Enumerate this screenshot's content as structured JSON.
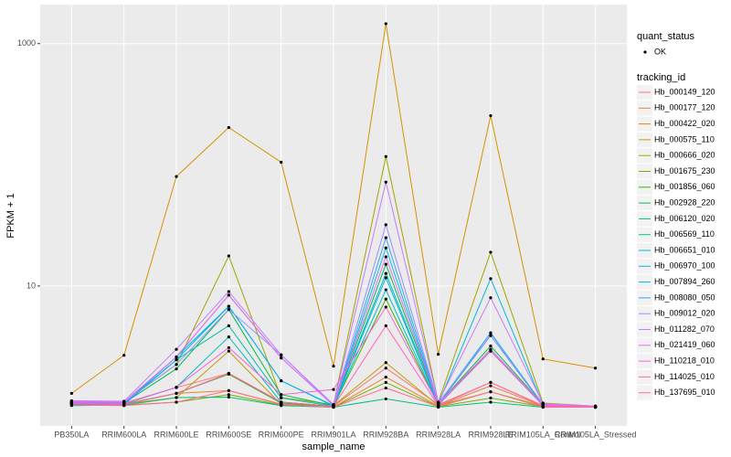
{
  "chart_data": {
    "type": "line",
    "x_label": "sample_name",
    "y_label": "FPKM + 1",
    "ylog": true,
    "grid": true,
    "categories": [
      "PB350LA",
      "RRIM600LA",
      "RRIM600LE",
      "RRIM600SE",
      "RRIM600PE",
      "RRIM901LA",
      "RRIM928BA",
      "RRIM928LA",
      "RRIM928LE",
      "RRIM105LA_Control",
      "RRIM105LA_Stressed"
    ],
    "ylim": [
      0.7,
      2100
    ],
    "yticks": [
      10,
      1000
    ],
    "point_color": "#000000",
    "shape_legend": {
      "title": "quant_status",
      "items": [
        "OK"
      ]
    },
    "legend_title": "tracking_id",
    "series": [
      {
        "name": "Hb_000149_120",
        "color": "#F8766D",
        "values": [
          1.1,
          1.08,
          1.45,
          1.9,
          1.1,
          1.02,
          2.1,
          1.05,
          1.6,
          1.03,
          1.0
        ]
      },
      {
        "name": "Hb_000177_120",
        "color": "#EA8331",
        "values": [
          1.05,
          1.05,
          1.3,
          1.37,
          1.06,
          1.0,
          1.77,
          1.02,
          1.5,
          1.02,
          1.0
        ]
      },
      {
        "name": "Hb_000422_020",
        "color": "#D89000",
        "values": [
          1.3,
          2.68,
          80,
          203,
          105,
          2.18,
          1460,
          2.73,
          254,
          2.5,
          2.1
        ]
      },
      {
        "name": "Hb_000575_110",
        "color": "#C09B00",
        "values": [
          1.08,
          1.06,
          1.2,
          2.9,
          1.05,
          1.03,
          2.33,
          1.03,
          1.34,
          1.02,
          1.01
        ]
      },
      {
        "name": "Hb_000666_020",
        "color": "#A3A500",
        "values": [
          1.12,
          1.1,
          2.25,
          17.7,
          1.2,
          1.05,
          117,
          1.1,
          19,
          1.08,
          1.02
        ]
      },
      {
        "name": "Hb_001675_230",
        "color": "#7CAE00",
        "values": [
          1.06,
          1.04,
          1.1,
          1.27,
          1.04,
          1.0,
          1.6,
          1.01,
          1.19,
          1.01,
          1.0
        ]
      },
      {
        "name": "Hb_001856_060",
        "color": "#39B600",
        "values": [
          1.05,
          1.06,
          1.3,
          1.87,
          1.08,
          1.02,
          7.8,
          1.04,
          3.0,
          1.03,
          1.0
        ]
      },
      {
        "name": "Hb_002928_220",
        "color": "#00BB4E",
        "values": [
          1.1,
          1.08,
          2.07,
          6.4,
          1.27,
          1.03,
          15.1,
          1.06,
          3.2,
          1.05,
          1.02
        ]
      },
      {
        "name": "Hb_006120_020",
        "color": "#00BF7D",
        "values": [
          1.03,
          1.04,
          1.2,
          1.21,
          1.03,
          1.0,
          1.17,
          1.0,
          1.1,
          1.0,
          1.0
        ]
      },
      {
        "name": "Hb_006569_110",
        "color": "#00C1A3",
        "values": [
          1.08,
          1.07,
          2.46,
          4.7,
          1.19,
          1.02,
          12.7,
          1.05,
          3.9,
          1.04,
          1.01
        ]
      },
      {
        "name": "Hb_006651_010",
        "color": "#00BFC4",
        "values": [
          1.07,
          1.06,
          1.46,
          3.8,
          1.1,
          1.02,
          9.3,
          1.04,
          2.9,
          1.03,
          1.0
        ]
      },
      {
        "name": "Hb_006970_100",
        "color": "#00BAE0",
        "values": [
          1.09,
          1.07,
          2.6,
          6.8,
          1.65,
          1.03,
          20.6,
          1.06,
          11.5,
          1.05,
          1.01
        ]
      },
      {
        "name": "Hb_007894_260",
        "color": "#00B0F6",
        "values": [
          1.06,
          1.05,
          2.46,
          6.8,
          1.65,
          1.02,
          11.7,
          1.05,
          4.1,
          1.04,
          1.0
        ]
      },
      {
        "name": "Hb_008080_050",
        "color": "#35A2FF",
        "values": [
          1.1,
          1.08,
          2.6,
          8.4,
          2.55,
          1.03,
          25,
          1.07,
          4.1,
          1.05,
          1.01
        ]
      },
      {
        "name": "Hb_009012_020",
        "color": "#9590FF",
        "values": [
          1.12,
          1.1,
          2.25,
          6.4,
          2.7,
          1.04,
          32,
          1.08,
          3.9,
          1.06,
          1.02
        ]
      },
      {
        "name": "Hb_011282_070",
        "color": "#C77CFF",
        "values": [
          1.13,
          1.12,
          3.0,
          9,
          2.7,
          1.05,
          72,
          1.1,
          8,
          1.07,
          1.02
        ]
      },
      {
        "name": "Hb_021419_060",
        "color": "#E76BF3",
        "values": [
          1.11,
          1.1,
          2.6,
          8.4,
          2.55,
          1.04,
          17.4,
          1.07,
          3.0,
          1.05,
          1.01
        ]
      },
      {
        "name": "Hb_110218_010",
        "color": "#FA62DB",
        "values": [
          1.08,
          1.07,
          1.46,
          3.1,
          1.27,
          1.4,
          6.7,
          1.05,
          2.9,
          1.04,
          1.0
        ]
      },
      {
        "name": "Hb_114025_010",
        "color": "#FF62BC",
        "values": [
          1.07,
          1.05,
          1.3,
          1.9,
          1.1,
          1.02,
          4.7,
          1.03,
          1.6,
          1.02,
          1.0
        ]
      },
      {
        "name": "Hb_137695_010",
        "color": "#FF6C91",
        "values": [
          1.04,
          1.03,
          1.1,
          1.37,
          1.05,
          1.0,
          1.44,
          1.01,
          1.34,
          1.0,
          1.0
        ]
      }
    ]
  }
}
